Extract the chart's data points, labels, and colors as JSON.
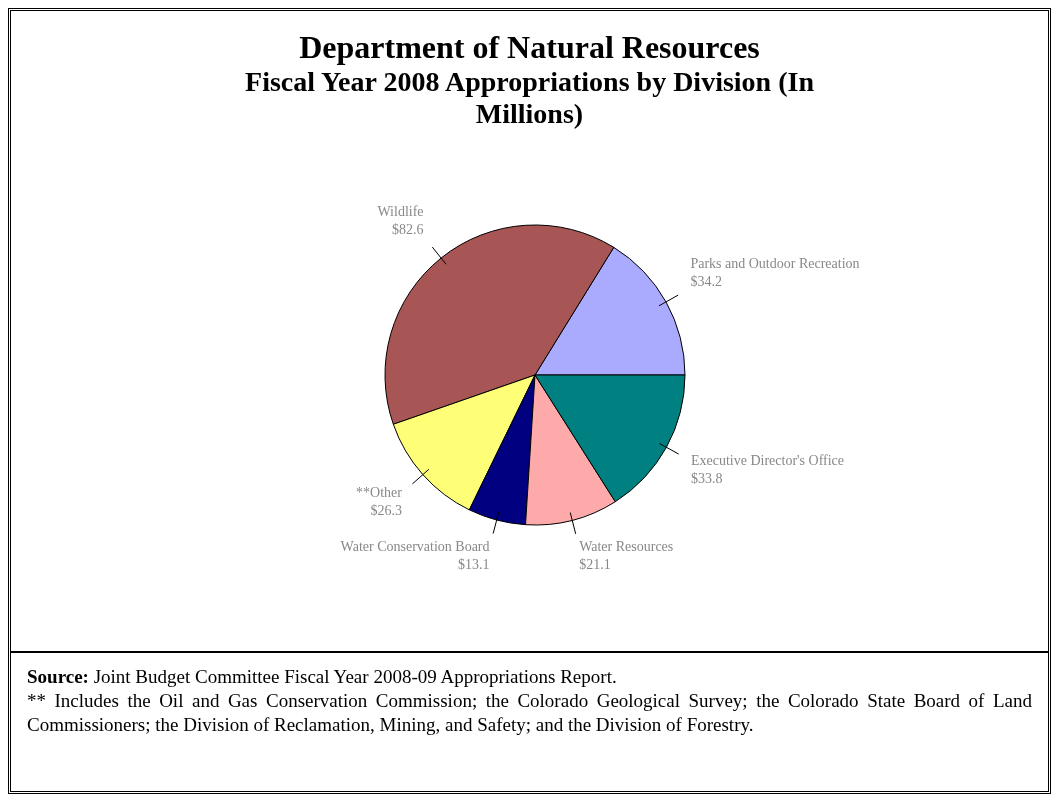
{
  "chart_data": {
    "type": "pie",
    "title": "Department of Natural Resources",
    "subtitle": "Fiscal Year 2008 Appropriations by Division (In Millions)",
    "categories": [
      "Parks and Outdoor Recreation",
      "Wildlife",
      "**Other",
      "Water Conservation Board",
      "Water Resources",
      "Executive Director's Office"
    ],
    "values": [
      34.2,
      82.6,
      26.3,
      13.1,
      21.1,
      33.8
    ],
    "colors": [
      "#aaaaff",
      "#a85555",
      "#ffff77",
      "#000080",
      "#ffaaaa",
      "#008080"
    ],
    "value_labels": [
      "$34.2",
      "$82.6",
      "$26.3",
      "$13.1",
      "$21.1",
      "$33.8"
    ],
    "annotations": [
      "Source: Joint Budget Committee Fiscal Year 2008-09 Appropriations Report.",
      "** Includes the Oil and Gas Conservation Commission; the Colorado Geological Survey; the Colorado State Board of Land Commissioners; the Division of Reclamation, Mining, and Safety; and the Division of Forestry."
    ]
  }
}
